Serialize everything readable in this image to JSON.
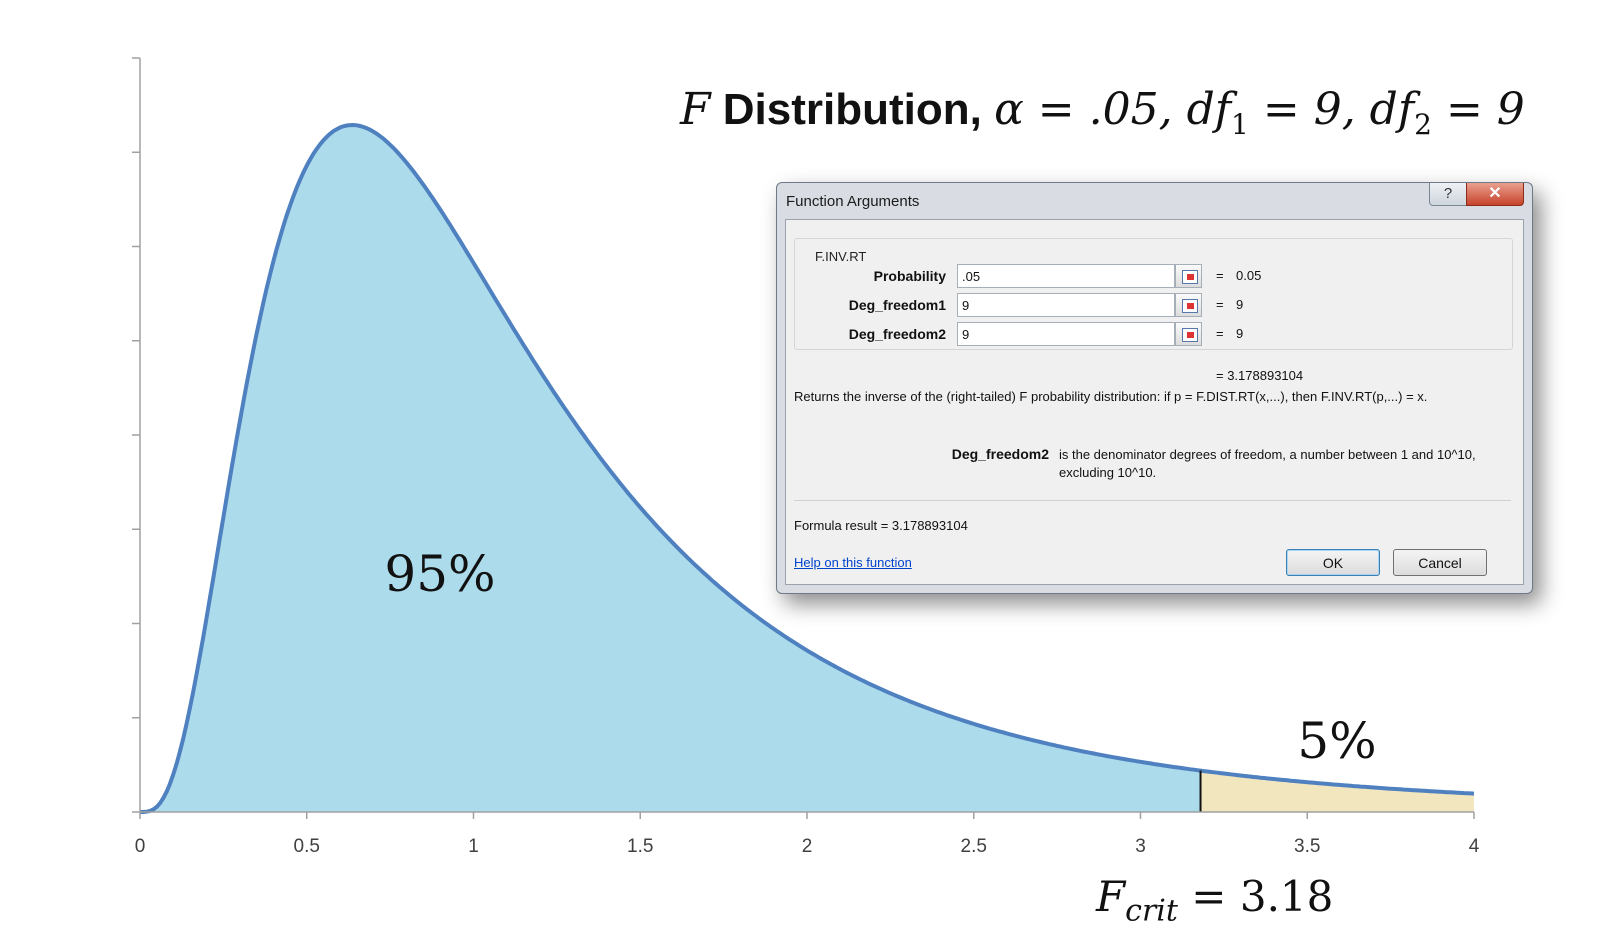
{
  "chart_data": {
    "type": "area",
    "title": "F Distribution, α = .05, df1 = 9, df2 = 9",
    "xlim": [
      0,
      4
    ],
    "x_ticks": [
      "0",
      "0.5",
      "1",
      "1.5",
      "2",
      "2.5",
      "3",
      "3.5",
      "4"
    ],
    "df1": 9,
    "df2": 9,
    "alpha": 0.05,
    "critical_value": 3.18,
    "regions": [
      {
        "label": "95%",
        "from": 0,
        "to": 3.18,
        "color": "#acdcec"
      },
      {
        "label": "5%",
        "from": 3.18,
        "to": 4,
        "color": "#f1e6be"
      }
    ],
    "curve_color": "#4f80c0",
    "fcrit_label": "= 3.18",
    "y_tick_count": 8,
    "grid": false
  },
  "title": {
    "f": "F",
    "word": "Distribution,",
    "alpha": "α = .05, df",
    "sub1": "1",
    "mid": " = 9, df",
    "sub2": "2",
    "end": " = 9"
  },
  "fcrit": {
    "f": "F",
    "sub": "crit",
    "eq": " = 3.18"
  },
  "dialog": {
    "title": "Function Arguments",
    "help_btn": "?",
    "close_btn": "✕",
    "function_name": "F.INV.RT",
    "args": [
      {
        "name": "Probability",
        "input": ".05",
        "eq": "=",
        "value": "0.05"
      },
      {
        "name": "Deg_freedom1",
        "input": "9",
        "eq": "=",
        "value": "9"
      },
      {
        "name": "Deg_freedom2",
        "input": "9",
        "eq": "=",
        "value": "9"
      }
    ],
    "overall_result": "=   3.178893104",
    "description": "Returns the inverse of the (right-tailed) F probability distribution: if p = F.DIST.RT(x,...), then F.INV.RT(p,...) = x.",
    "param_name": "Deg_freedom2",
    "param_desc": "is the denominator degrees of freedom, a number between 1 and 10^10, excluding 10^10.",
    "formula_result": "Formula result =    3.178893104",
    "help_link": "Help on this function",
    "ok": "OK",
    "cancel": "Cancel"
  }
}
